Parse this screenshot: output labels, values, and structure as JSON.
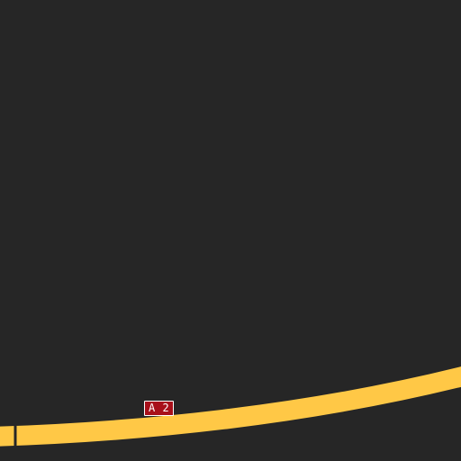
{
  "map": {
    "background_color": "#262626",
    "roads": [
      {
        "kind": "motorway",
        "color": "#ffc846",
        "ref": "A 2"
      }
    ],
    "shield": {
      "label": "A 2",
      "fill_color": "#a8101a",
      "border_color": "#ffffff",
      "text_color": "#ffffff"
    }
  }
}
